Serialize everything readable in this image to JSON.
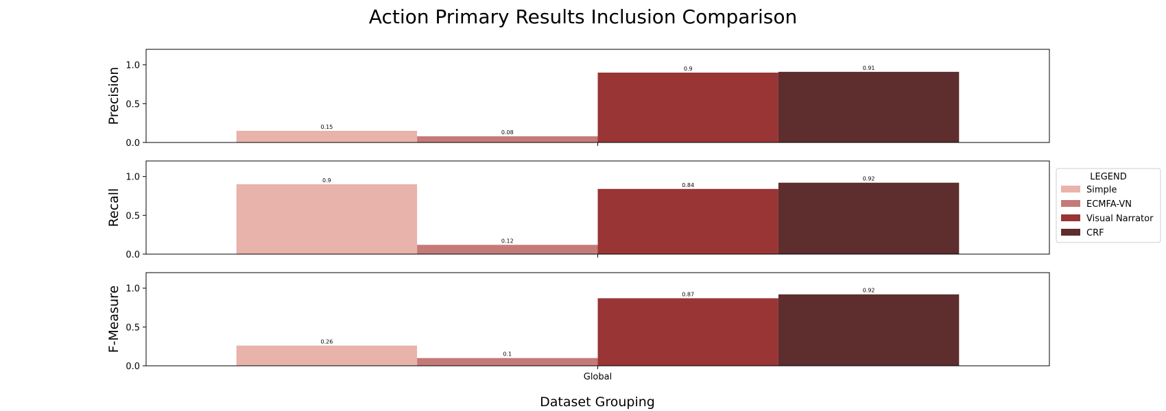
{
  "chart_data": {
    "type": "bar",
    "title": "Action Primary Results Inclusion Comparison",
    "xlabel": "Dataset Grouping",
    "categories": [
      "Global"
    ],
    "ylim": [
      0,
      1.2
    ],
    "yticks": [
      "0.0",
      "0.5",
      "1.0"
    ],
    "grid": false,
    "legend": {
      "title": "LEGEND",
      "placement": "right"
    },
    "series": [
      {
        "name": "Simple",
        "color": "#e8b3aa"
      },
      {
        "name": "ECMFA-VN",
        "color": "#c47b78"
      },
      {
        "name": "Visual Narrator",
        "color": "#993535"
      },
      {
        "name": "CRF",
        "color": "#5e2d2d"
      }
    ],
    "panels": [
      {
        "ylabel": "Precision",
        "values": [
          0.15,
          0.08,
          0.9,
          0.91
        ],
        "labels": [
          "0.15",
          "0.08",
          "0.9",
          "0.91"
        ]
      },
      {
        "ylabel": "Recall",
        "values": [
          0.9,
          0.12,
          0.84,
          0.92
        ],
        "labels": [
          "0.9",
          "0.12",
          "0.84",
          "0.92"
        ]
      },
      {
        "ylabel": "F-Measure",
        "values": [
          0.26,
          0.1,
          0.87,
          0.92
        ],
        "labels": [
          "0.26",
          "0.1",
          "0.87",
          "0.92"
        ]
      }
    ]
  }
}
